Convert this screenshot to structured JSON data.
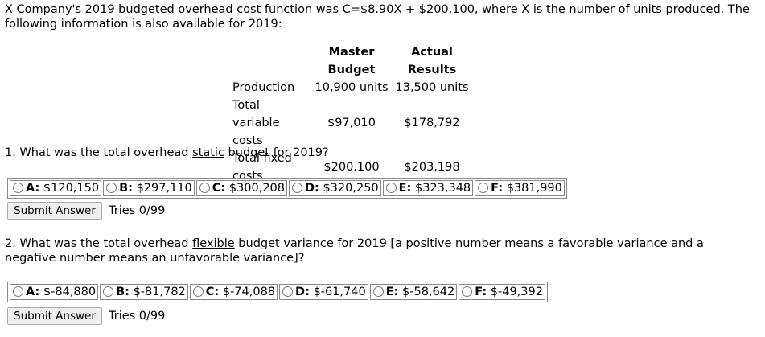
{
  "intro": "X Company's 2019 budgeted overhead cost function was C=$8.90X + $200,100, where X is the number of units produced. The following information is also available for 2019:",
  "table": {
    "headers": [
      "Master Budget",
      "Actual Results"
    ],
    "rows": [
      [
        "Production",
        "10,900 units",
        "13,500 units"
      ],
      [
        "Total variable costs",
        "$97,010",
        "$178,792"
      ],
      [
        "Total fixed costs",
        "$200,100",
        "$203,198"
      ]
    ]
  },
  "questions": [
    {
      "text_before": "1. What was the total overhead ",
      "underlined": "static",
      "text_after": " budget for 2019?",
      "options": [
        {
          "letter": "A:",
          "text": "$120,150"
        },
        {
          "letter": "B:",
          "text": "$297,110"
        },
        {
          "letter": "C:",
          "text": "$300,208"
        },
        {
          "letter": "D:",
          "text": "$320,250"
        },
        {
          "letter": "E:",
          "text": "$323,348"
        },
        {
          "letter": "F:",
          "text": "$381,990"
        }
      ],
      "button": "Submit Answer",
      "tries": "Tries 0/99"
    },
    {
      "text_before": "2. What was the total overhead ",
      "underlined": "flexible",
      "text_after": " budget variance for 2019 [a positive number means a favorable variance and a negative number means an unfavorable variance]?",
      "options": [
        {
          "letter": "A:",
          "text": "$-84,880"
        },
        {
          "letter": "B:",
          "text": "$-81,782"
        },
        {
          "letter": "C:",
          "text": "$-74,088"
        },
        {
          "letter": "D:",
          "text": "$-61,740"
        },
        {
          "letter": "E:",
          "text": "$-58,642"
        },
        {
          "letter": "F:",
          "text": "$-49,392"
        }
      ],
      "button": "Submit Answer",
      "tries": "Tries 0/99"
    }
  ]
}
